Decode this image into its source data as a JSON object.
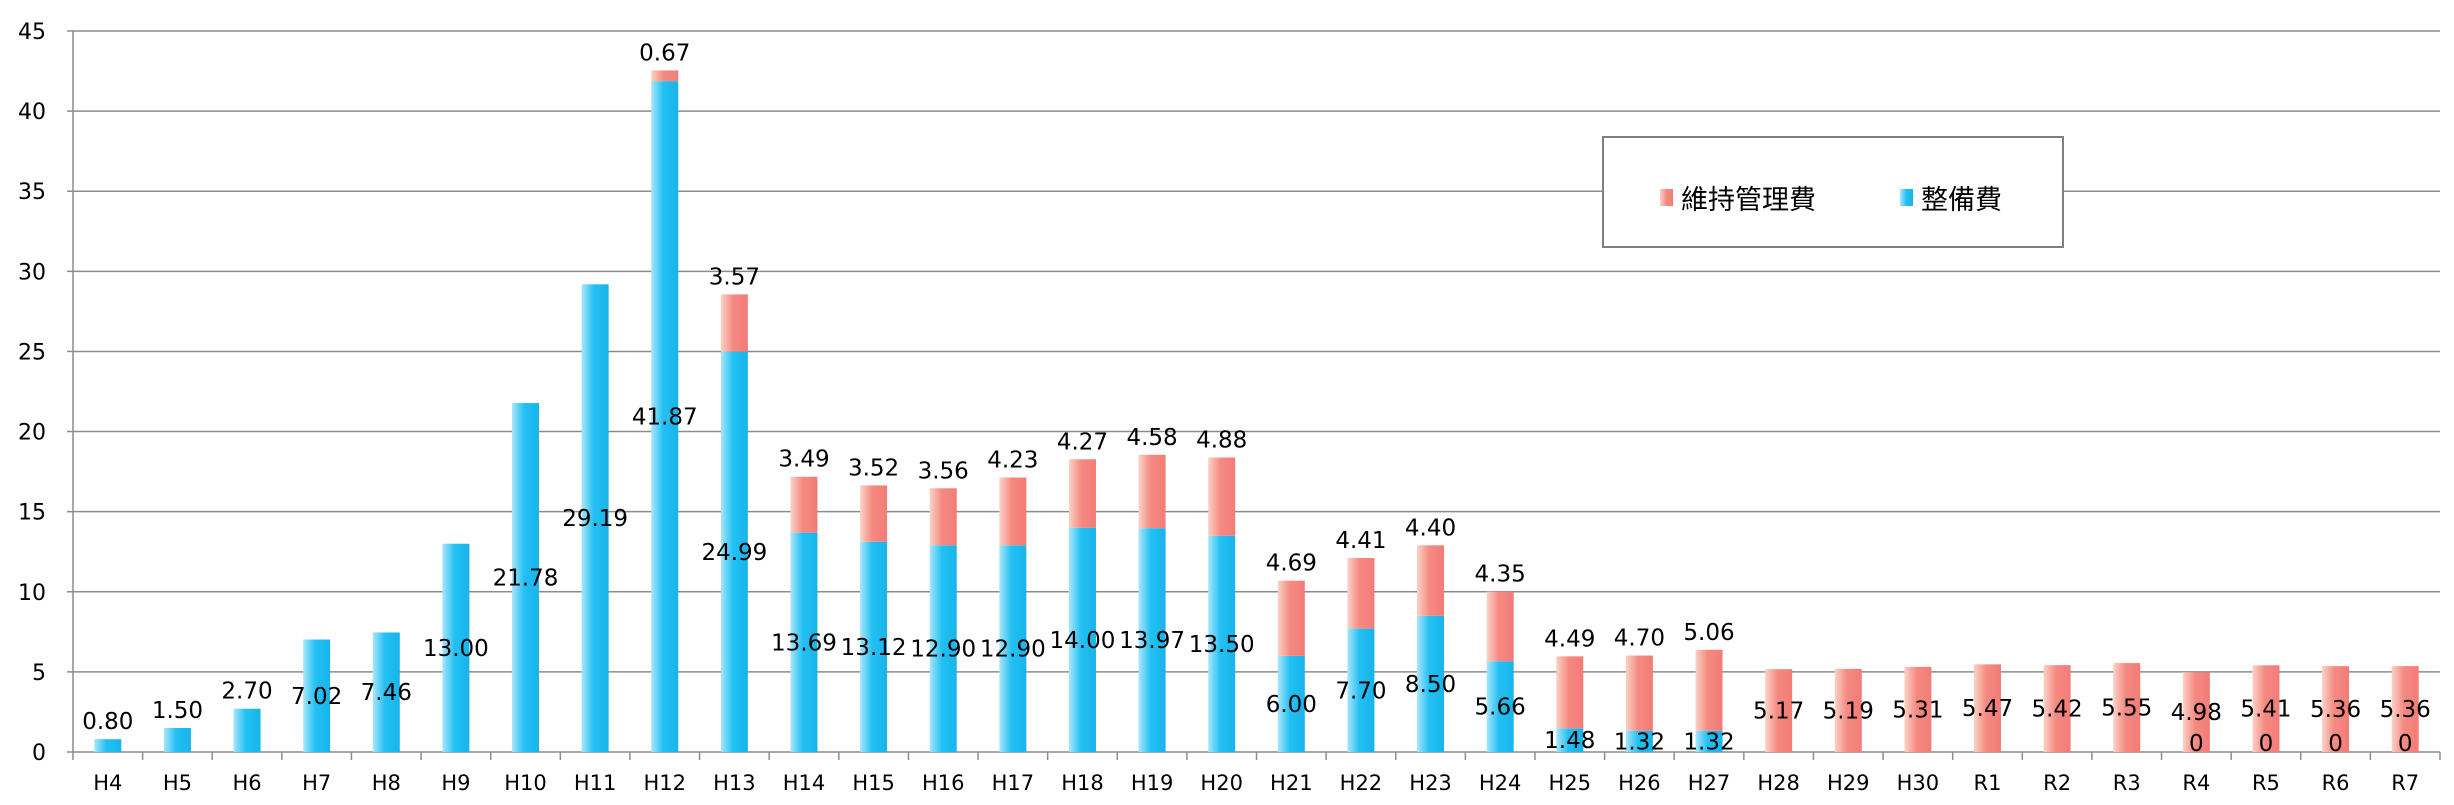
{
  "chart_data": {
    "type": "bar",
    "stacked": true,
    "categories": [
      "H4",
      "H5",
      "H6",
      "H7",
      "H8",
      "H9",
      "H10",
      "H11",
      "H12",
      "H13",
      "H14",
      "H15",
      "H16",
      "H17",
      "H18",
      "H19",
      "H20",
      "H21",
      "H22",
      "H23",
      "H24",
      "H25",
      "H26",
      "H27",
      "H28",
      "H29",
      "H30",
      "R1",
      "R2",
      "R3",
      "R4",
      "R5",
      "R6",
      "R7"
    ],
    "series": [
      {
        "name": "整備費",
        "color": "#29c4f5",
        "values": [
          0.8,
          1.5,
          2.7,
          7.02,
          7.46,
          13.0,
          21.78,
          29.19,
          41.87,
          24.99,
          13.69,
          13.12,
          12.9,
          12.9,
          14.0,
          13.97,
          13.5,
          6.0,
          7.7,
          8.5,
          5.66,
          1.48,
          1.32,
          1.32,
          null,
          null,
          null,
          null,
          null,
          null,
          0,
          0,
          0,
          0
        ],
        "labels": [
          "0.80",
          "1.50",
          "2.70",
          "7.02",
          "7.46",
          "13.00",
          "21.78",
          "29.19",
          "41.87",
          "24.99",
          "13.69",
          "13.12",
          "12.90",
          "12.90",
          "14.00",
          "13.97",
          "13.50",
          "6.00",
          "7.70",
          "8.50",
          "5.66",
          "1.48",
          "1.32",
          "1.32",
          "",
          "",
          "",
          "",
          "",
          "",
          "0",
          "0",
          "0",
          "0"
        ]
      },
      {
        "name": "維持管理費",
        "color": "#f58080",
        "values": [
          null,
          null,
          null,
          null,
          null,
          null,
          null,
          null,
          0.67,
          3.57,
          3.49,
          3.52,
          3.56,
          4.23,
          4.27,
          4.58,
          4.88,
          4.69,
          4.41,
          4.4,
          4.35,
          4.49,
          4.7,
          5.06,
          5.17,
          5.19,
          5.31,
          5.47,
          5.42,
          5.55,
          4.98,
          5.41,
          5.36,
          5.36
        ],
        "labels": [
          "",
          "",
          "",
          "",
          "",
          "",
          "",
          "",
          "0.67",
          "3.57",
          "3.49",
          "3.52",
          "3.56",
          "4.23",
          "4.27",
          "4.58",
          "4.88",
          "4.69",
          "4.41",
          "4.40",
          "4.35",
          "4.49",
          "4.70",
          "5.06",
          "5.17",
          "5.19",
          "5.31",
          "5.47",
          "5.42",
          "5.55",
          "4.98",
          "5.41",
          "5.36",
          "5.36"
        ]
      }
    ],
    "yticks": [
      "0",
      "5",
      "10",
      "15",
      "20",
      "25",
      "30",
      "35",
      "40",
      "45"
    ],
    "ylim": [
      0,
      45
    ],
    "grid": true,
    "legend_position": "top-right",
    "title": "",
    "xlabel": "",
    "ylabel": ""
  },
  "legend": {
    "maintenance_label": "維持管理費",
    "development_label": "整備費"
  }
}
